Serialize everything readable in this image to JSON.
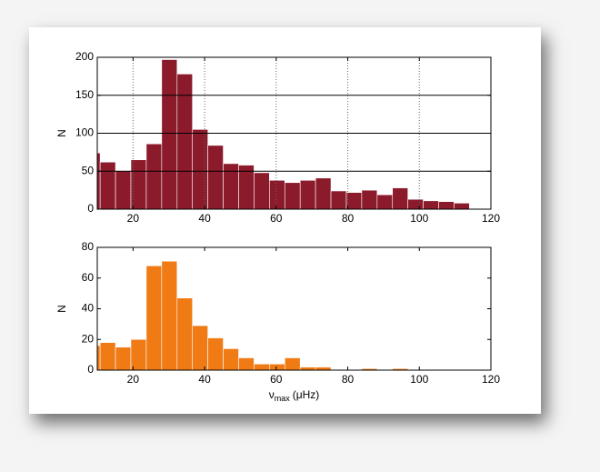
{
  "chart_data": [
    {
      "type": "histogram",
      "ylabel": "N",
      "color": "#8b1a2b",
      "grid": true,
      "bins": [
        6.5,
        10.8,
        15.1,
        19.4,
        23.7,
        28.0,
        32.3,
        36.6,
        40.9,
        45.2,
        49.5,
        53.8,
        58.1,
        62.4,
        66.7,
        71.0,
        75.3,
        79.6,
        83.9,
        88.2,
        92.5,
        96.8,
        101.1,
        105.4,
        109.7,
        114.0
      ],
      "values": [
        74,
        62,
        50,
        65,
        86,
        197,
        178,
        105,
        84,
        60,
        58,
        48,
        38,
        35,
        38,
        41,
        24,
        22,
        25,
        19,
        28,
        13,
        11,
        10,
        8
      ],
      "xlim": [
        10,
        120
      ],
      "xticks": [
        20,
        40,
        60,
        80,
        100,
        120
      ],
      "ylim": [
        0,
        200
      ],
      "yticks": [
        0,
        50,
        100,
        150,
        200
      ]
    },
    {
      "type": "histogram",
      "ylabel": "N",
      "color": "#f07a14",
      "grid": false,
      "xlabel": {
        "symbol": "ν",
        "subscript": "max",
        "unit": "(μHz)"
      },
      "bins": [
        6.5,
        10.8,
        15.1,
        19.4,
        23.7,
        28.0,
        32.3,
        36.6,
        40.9,
        45.2,
        49.5,
        53.8,
        58.1,
        62.4,
        66.7,
        71.0,
        75.3,
        79.6,
        83.9,
        88.2,
        92.5,
        96.8,
        101.1,
        105.4,
        109.7,
        114.0
      ],
      "values": [
        16,
        18,
        15,
        20,
        68,
        71,
        47,
        29,
        21,
        14,
        8,
        4,
        4,
        8,
        2,
        2,
        0,
        0,
        1,
        0,
        1,
        0,
        0,
        0,
        0
      ],
      "xlim": [
        10,
        120
      ],
      "xticks": [
        20,
        40,
        60,
        80,
        100,
        120
      ],
      "ylim": [
        0,
        80
      ],
      "yticks": [
        0,
        20,
        40,
        60,
        80
      ]
    }
  ]
}
